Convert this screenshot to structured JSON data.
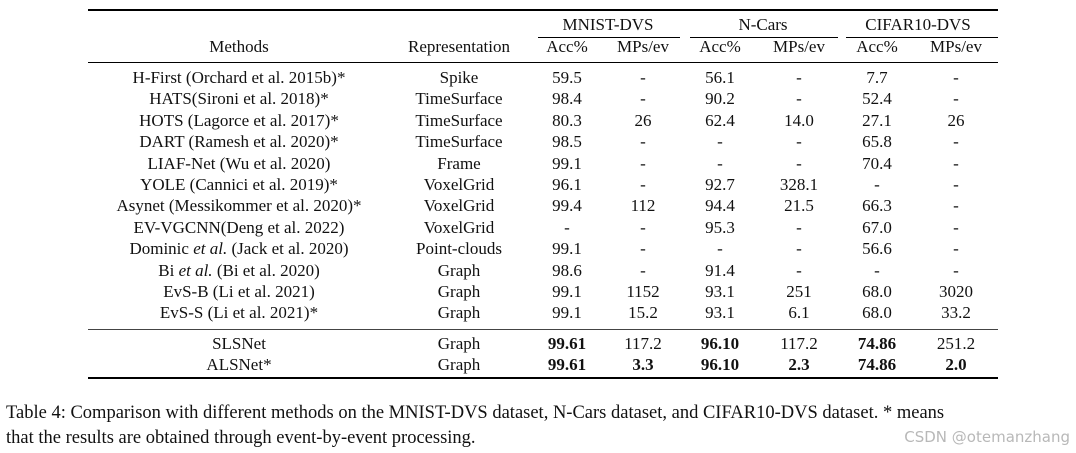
{
  "header": {
    "methods": "Methods",
    "representation": "Representation",
    "groups": [
      "MNIST-DVS",
      "N-Cars",
      "CIFAR10-DVS"
    ],
    "sub": [
      "Acc%",
      "MPs/ev",
      "Acc%",
      "MPs/ev",
      "Acc%",
      "MPs/ev"
    ]
  },
  "rows": [
    {
      "method": [
        "H-First (Orchard et al. 2015b)*",
        "",
        ""
      ],
      "rep": "Spike",
      "vals": [
        "59.5",
        "-",
        "56.1",
        "-",
        "7.7",
        "-"
      ],
      "bold": []
    },
    {
      "method": [
        "HATS(Sironi et al. 2018)*",
        "",
        ""
      ],
      "rep": "TimeSurface",
      "vals": [
        "98.4",
        "-",
        "90.2",
        "-",
        "52.4",
        "-"
      ],
      "bold": []
    },
    {
      "method": [
        "HOTS (Lagorce et al. 2017)*",
        "",
        ""
      ],
      "rep": "TimeSurface",
      "vals": [
        "80.3",
        "26",
        "62.4",
        "14.0",
        "27.1",
        "26"
      ],
      "bold": []
    },
    {
      "method": [
        "DART (Ramesh et al. 2020)*",
        "",
        ""
      ],
      "rep": "TimeSurface",
      "vals": [
        "98.5",
        "-",
        "-",
        "-",
        "65.8",
        "-"
      ],
      "bold": []
    },
    {
      "method": [
        "LIAF-Net (Wu et al. 2020)",
        "",
        ""
      ],
      "rep": "Frame",
      "vals": [
        "99.1",
        "-",
        "-",
        "-",
        "70.4",
        "-"
      ],
      "bold": []
    },
    {
      "method": [
        "YOLE (Cannici et al. 2019)*",
        "",
        ""
      ],
      "rep": "VoxelGrid",
      "vals": [
        "96.1",
        "-",
        "92.7",
        "328.1",
        "-",
        "-"
      ],
      "bold": []
    },
    {
      "method": [
        "Asynet (Messikommer et al. 2020)*",
        "",
        ""
      ],
      "rep": "VoxelGrid",
      "vals": [
        "99.4",
        "112",
        "94.4",
        "21.5",
        "66.3",
        "-"
      ],
      "bold": []
    },
    {
      "method": [
        "EV-VGCNN(Deng et al. 2022)",
        "",
        ""
      ],
      "rep": "VoxelGrid",
      "vals": [
        "-",
        "-",
        "95.3",
        "-",
        "67.0",
        "-"
      ],
      "bold": []
    },
    {
      "method": [
        "Dominic ",
        "et al.",
        " (Jack et al. 2020)"
      ],
      "rep": "Point-clouds",
      "vals": [
        "99.1",
        "-",
        "-",
        "-",
        "56.6",
        "-"
      ],
      "bold": []
    },
    {
      "method": [
        "Bi ",
        "et al.",
        " (Bi et al. 2020)"
      ],
      "rep": "Graph",
      "vals": [
        "98.6",
        "-",
        "91.4",
        "-",
        "-",
        "-"
      ],
      "bold": []
    },
    {
      "method": [
        "EvS-B (Li et al. 2021)",
        "",
        ""
      ],
      "rep": "Graph",
      "vals": [
        "99.1",
        "1152",
        "93.1",
        "251",
        "68.0",
        "3020"
      ],
      "bold": []
    },
    {
      "method": [
        "EvS-S (Li et al. 2021)*",
        "",
        ""
      ],
      "rep": "Graph",
      "vals": [
        "99.1",
        "15.2",
        "93.1",
        "6.1",
        "68.0",
        "33.2"
      ],
      "bold": []
    },
    {
      "method": [
        "SLSNet",
        "",
        ""
      ],
      "rep": "Graph",
      "vals": [
        "99.61",
        "117.2",
        "96.10",
        "117.2",
        "74.86",
        "251.2"
      ],
      "bold": [
        0,
        2,
        4
      ]
    },
    {
      "method": [
        "ALSNet*",
        "",
        ""
      ],
      "rep": "Graph",
      "vals": [
        "99.61",
        "3.3",
        "96.10",
        "2.3",
        "74.86",
        "2.0"
      ],
      "bold": [
        0,
        1,
        2,
        3,
        4,
        5
      ]
    }
  ],
  "caption": {
    "line1": "Table 4: Comparison with different methods on the MNIST-DVS dataset, N-Cars dataset, and CIFAR10-DVS dataset. * means",
    "line2": "that the results are obtained through event-by-event processing."
  },
  "watermark": "CSDN @otemanzhang"
}
